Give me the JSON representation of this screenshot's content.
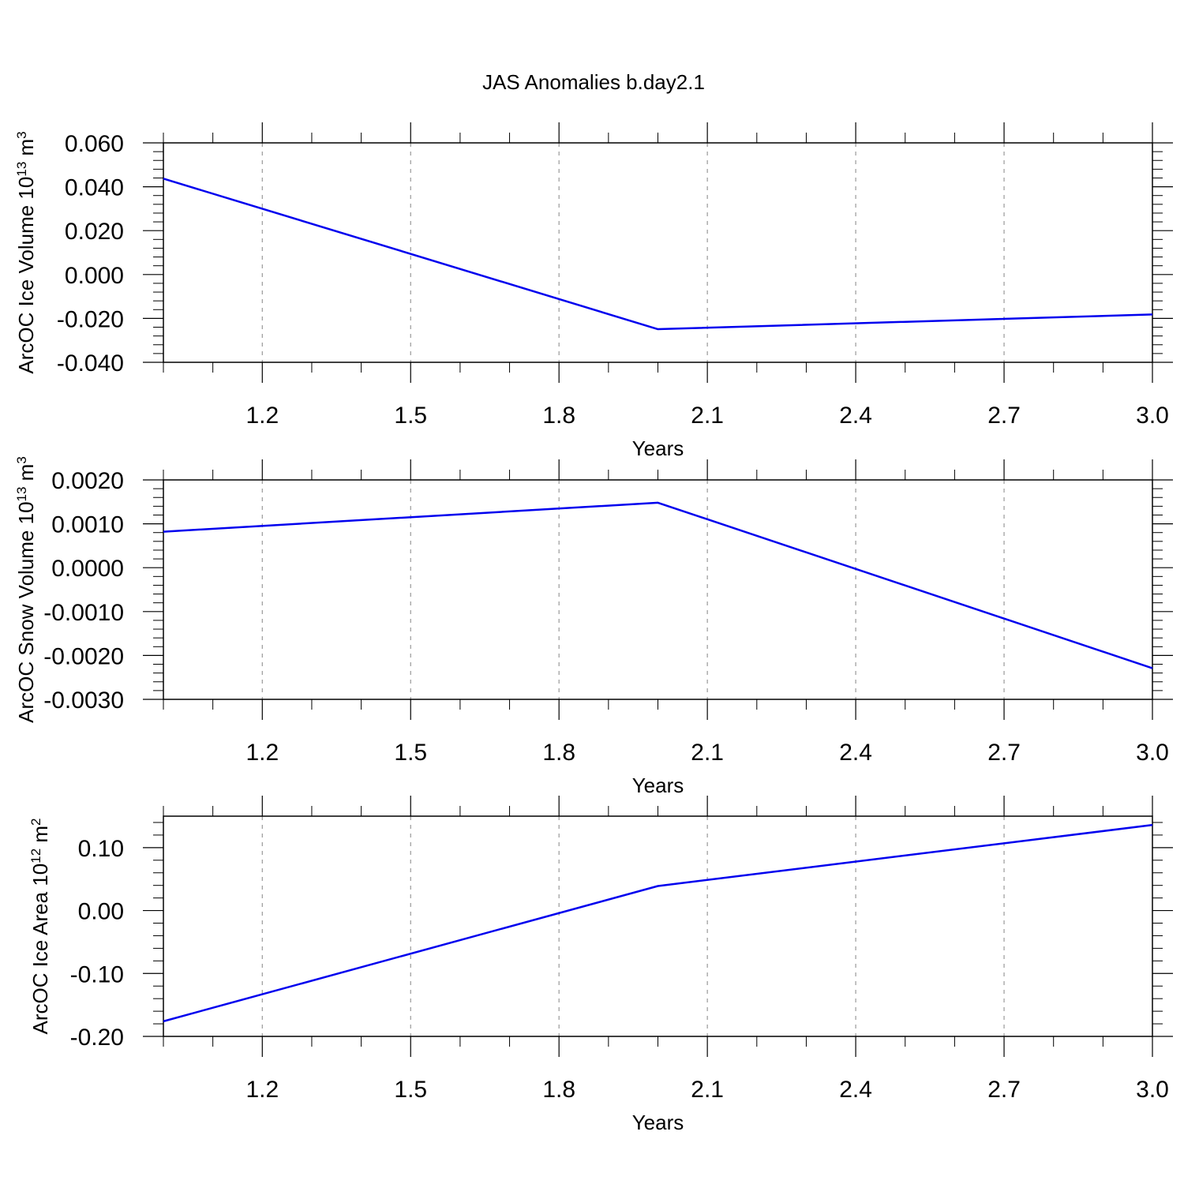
{
  "title": "JAS Anomalies b.day2.1",
  "colors": {
    "line": "#0000ee",
    "frame": "#000000",
    "grid": "#999999"
  },
  "chart_data": [
    {
      "type": "line",
      "xlabel": "Years",
      "ylabel": {
        "text": "ArcOC Ice Volume 10",
        "exp": "13",
        "unit": " m",
        "unit_exp": "3"
      },
      "xlim": [
        1.0,
        3.0
      ],
      "ylim": [
        -0.04,
        0.06
      ],
      "xticks": [
        "1.2",
        "1.5",
        "1.8",
        "2.1",
        "2.4",
        "2.7",
        "3.0"
      ],
      "yticks": [
        "-0.040",
        "-0.020",
        "0.000",
        "0.020",
        "0.040",
        "0.060"
      ],
      "grid": "vertical dashed",
      "series": [
        {
          "x": [
            1.0,
            2.0,
            3.0
          ],
          "y": [
            0.0437,
            -0.0249,
            -0.0182
          ]
        }
      ]
    },
    {
      "type": "line",
      "xlabel": "Years",
      "ylabel": {
        "text": "ArcOC Snow Volume 10",
        "exp": "13",
        "unit": " m",
        "unit_exp": "3"
      },
      "xlim": [
        1.0,
        3.0
      ],
      "ylim": [
        -0.003,
        0.002
      ],
      "xticks": [
        "1.2",
        "1.5",
        "1.8",
        "2.1",
        "2.4",
        "2.7",
        "3.0"
      ],
      "yticks": [
        "-0.0030",
        "-0.0020",
        "-0.0010",
        "0.0000",
        "0.0010",
        "0.0020"
      ],
      "grid": "vertical dashed",
      "series": [
        {
          "x": [
            1.0,
            2.0,
            3.0
          ],
          "y": [
            0.00082,
            0.00148,
            -0.00229
          ]
        }
      ]
    },
    {
      "type": "line",
      "xlabel": "Years",
      "ylabel": {
        "text": "ArcOC Ice Area 10",
        "exp": "12",
        "unit": " m",
        "unit_exp": "2"
      },
      "xlim": [
        1.0,
        3.0
      ],
      "ylim": [
        -0.2,
        0.15
      ],
      "xticks": [
        "1.2",
        "1.5",
        "1.8",
        "2.1",
        "2.4",
        "2.7",
        "3.0"
      ],
      "yticks": [
        "-0.20",
        "-0.10",
        "0.00",
        "0.10"
      ],
      "grid": "vertical dashed",
      "series": [
        {
          "x": [
            1.0,
            2.0,
            3.0
          ],
          "y": [
            -0.176,
            0.039,
            0.136
          ]
        }
      ]
    }
  ]
}
